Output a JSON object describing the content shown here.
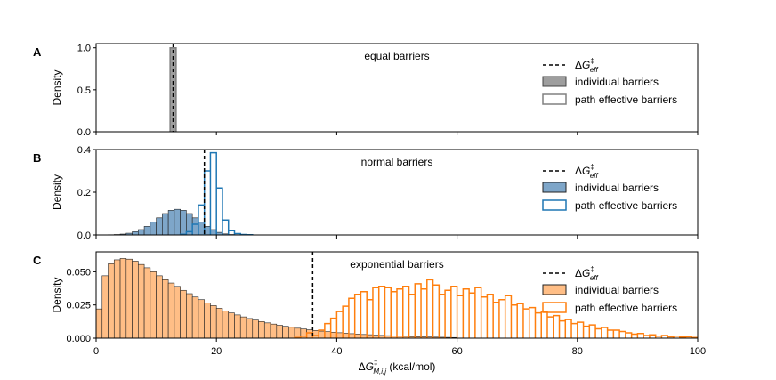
{
  "colors": {
    "gray_fill": "#9e9e9e",
    "gray_edge": "#444444",
    "gray_effective": "#808080",
    "blue_fill": "#7ea6c9",
    "blue_edge": "#1f77b4",
    "orange_fill": "#ffbe86",
    "orange_edge": "#ff7f0e",
    "dash": "#000000"
  },
  "legend_labels": {
    "dashed": "ΔG‡eff",
    "individual": "individual barriers",
    "effective": "path effective barriers"
  },
  "chart_data": [
    {
      "type": "bar",
      "panel_label": "A",
      "title": "equal barriers",
      "ylabel": "Density",
      "xlim": [
        0,
        100
      ],
      "ylim": [
        0,
        1.05
      ],
      "yticks": [
        "0.0",
        "0.5",
        "1.0"
      ],
      "ytick_values": [
        0,
        0.5,
        1.0
      ],
      "bin_width": 1,
      "individual": {
        "start": 12.3,
        "values": [
          1.0
        ]
      },
      "effective": {
        "start": 12.3,
        "values": [
          1.0
        ]
      },
      "dashed_x": 12.8,
      "color_key": "gray"
    },
    {
      "type": "bar",
      "panel_label": "B",
      "title": "normal barriers",
      "ylabel": "Density",
      "xlim": [
        0,
        100
      ],
      "ylim": [
        0,
        0.4
      ],
      "yticks": [
        "0.0",
        "0.2",
        "0.4"
      ],
      "ytick_values": [
        0,
        0.2,
        0.4
      ],
      "bin_width": 1,
      "individual": {
        "start": 2,
        "values": [
          0.001,
          0.002,
          0.004,
          0.008,
          0.015,
          0.025,
          0.04,
          0.06,
          0.08,
          0.1,
          0.115,
          0.12,
          0.115,
          0.1,
          0.08,
          0.06,
          0.04,
          0.025,
          0.012,
          0.005,
          0.002
        ]
      },
      "effective": {
        "start": 14,
        "values": [
          0.003,
          0.015,
          0.05,
          0.14,
          0.3,
          0.385,
          0.22,
          0.07,
          0.02,
          0.006,
          0.002,
          0.001
        ]
      },
      "dashed_x": 18,
      "color_key": "blue"
    },
    {
      "type": "bar",
      "panel_label": "C",
      "title": "exponential barriers",
      "ylabel": "Density",
      "xlabel": "ΔG‡M,i,j (kcal/mol)",
      "xlim": [
        0,
        100
      ],
      "ylim": [
        0,
        0.065
      ],
      "yticks": [
        "0.000",
        "0.025",
        "0.050"
      ],
      "ytick_values": [
        0,
        0.025,
        0.05
      ],
      "xticks": [
        "0",
        "20",
        "40",
        "60",
        "80",
        "100"
      ],
      "xtick_values": [
        0,
        20,
        40,
        60,
        80,
        100
      ],
      "bin_width": 1,
      "individual": {
        "start": 0,
        "values": [
          0.022,
          0.047,
          0.056,
          0.059,
          0.06,
          0.0595,
          0.058,
          0.0555,
          0.053,
          0.05,
          0.047,
          0.044,
          0.0415,
          0.039,
          0.036,
          0.0335,
          0.031,
          0.029,
          0.0265,
          0.0245,
          0.0225,
          0.0205,
          0.019,
          0.0175,
          0.016,
          0.0148,
          0.0136,
          0.0125,
          0.0115,
          0.0106,
          0.0097,
          0.0089,
          0.0082,
          0.0075,
          0.0069,
          0.0063,
          0.0058,
          0.0053,
          0.0049,
          0.0045,
          0.0041,
          0.0037,
          0.0034,
          0.0031,
          0.0028,
          0.0026,
          0.0023,
          0.0021,
          0.0019,
          0.0017,
          0.0015,
          0.0014,
          0.0012,
          0.0011,
          0.001,
          0.0009,
          0.0008,
          0.0007,
          0.0006,
          0.0005
        ]
      },
      "effective": {
        "start": 33,
        "values": [
          0.0005,
          0.0015,
          0.004,
          0.002,
          0.006,
          0.011,
          0.015,
          0.02,
          0.024,
          0.03,
          0.033,
          0.035,
          0.029,
          0.038,
          0.039,
          0.038,
          0.035,
          0.037,
          0.039,
          0.033,
          0.041,
          0.037,
          0.044,
          0.04,
          0.033,
          0.036,
          0.039,
          0.032,
          0.037,
          0.034,
          0.038,
          0.031,
          0.033,
          0.027,
          0.029,
          0.032,
          0.025,
          0.026,
          0.022,
          0.023,
          0.019,
          0.02,
          0.016,
          0.017,
          0.013,
          0.014,
          0.011,
          0.012,
          0.009,
          0.01,
          0.007,
          0.008,
          0.006,
          0.006,
          0.005,
          0.004,
          0.003,
          0.0035,
          0.002,
          0.0025,
          0.0015,
          0.002,
          0.001,
          0.0015,
          0.0008,
          0.001,
          0.0005
        ]
      },
      "dashed_x": 36,
      "color_key": "orange"
    }
  ]
}
